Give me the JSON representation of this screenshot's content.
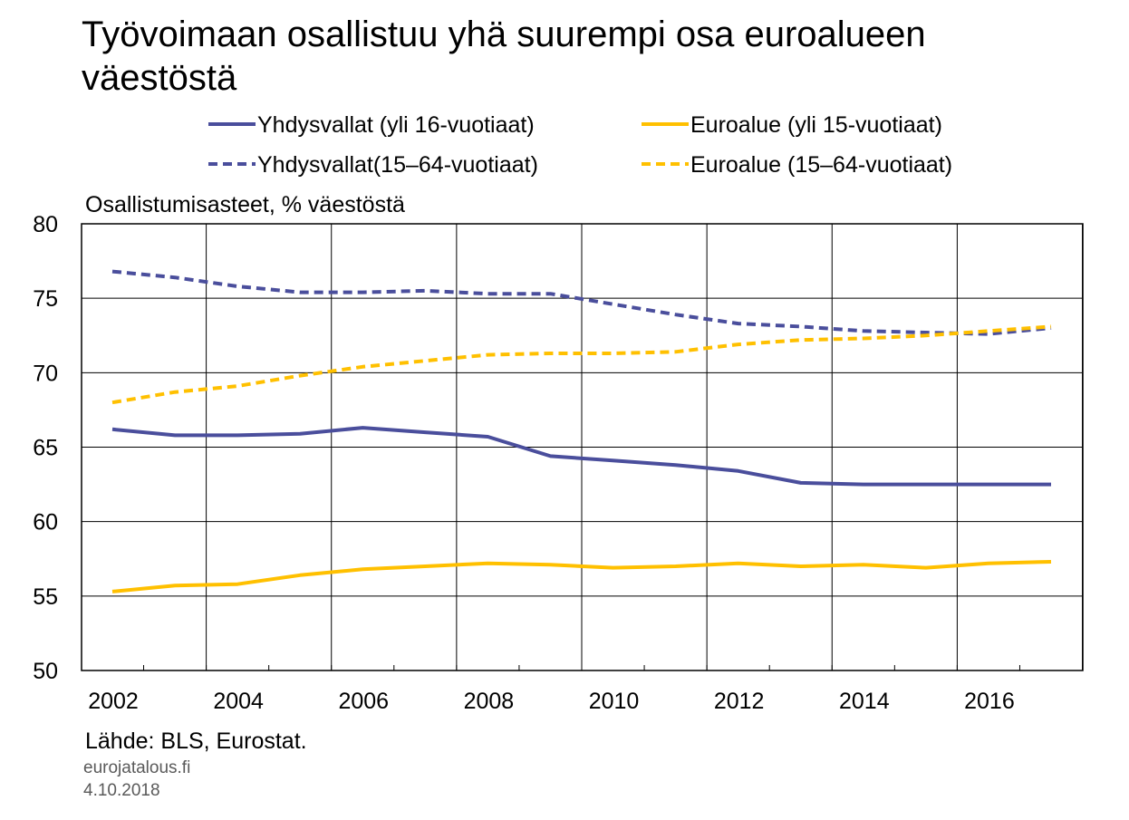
{
  "title": "Työvoimaan osallistuu yhä suurempi osa euroalueen väestöstä",
  "ylabel": "Osallistumisasteet, % väestöstä",
  "source": "Lähde: BLS, Eurostat.",
  "site": "eurojatalous.fi",
  "date": "4.10.2018",
  "colors": {
    "blue": "#4a4e9c",
    "gold": "#ffc000",
    "grid": "#000000"
  },
  "chart_data": {
    "type": "line",
    "x": [
      2002,
      2003,
      2004,
      2005,
      2006,
      2007,
      2008,
      2009,
      2010,
      2011,
      2012,
      2013,
      2014,
      2015,
      2016,
      2017
    ],
    "xticks": [
      "2002",
      "2004",
      "2006",
      "2008",
      "2010",
      "2012",
      "2014",
      "2016"
    ],
    "yticks": [
      "50",
      "55",
      "60",
      "65",
      "70",
      "75",
      "80"
    ],
    "ylim": [
      50,
      80
    ],
    "grid": true,
    "legend_position": "top",
    "series": [
      {
        "name": "Yhdysvallat (yli 16-vuotiaat)",
        "color": "#4a4e9c",
        "dash": false,
        "values": [
          66.2,
          65.8,
          65.8,
          65.9,
          66.3,
          66.0,
          65.7,
          64.4,
          64.1,
          63.8,
          63.4,
          62.6,
          62.5,
          62.5,
          62.5,
          62.5
        ]
      },
      {
        "name": "Euroalue (yli 15-vuotiaat)",
        "color": "#ffc000",
        "dash": false,
        "values": [
          55.3,
          55.7,
          55.8,
          56.4,
          56.8,
          57.0,
          57.2,
          57.1,
          56.9,
          57.0,
          57.2,
          57.0,
          57.1,
          56.9,
          57.2,
          57.3
        ]
      },
      {
        "name": "Yhdysvallat(15–64-vuotiaat)",
        "color": "#4a4e9c",
        "dash": true,
        "values": [
          76.8,
          76.4,
          75.8,
          75.4,
          75.4,
          75.5,
          75.3,
          75.3,
          74.6,
          73.9,
          73.3,
          73.1,
          72.8,
          72.7,
          72.6,
          73.0
        ]
      },
      {
        "name": "Euroalue (15–64-vuotiaat)",
        "color": "#ffc000",
        "dash": true,
        "values": [
          68.0,
          68.7,
          69.1,
          69.8,
          70.4,
          70.8,
          71.2,
          71.3,
          71.3,
          71.4,
          71.9,
          72.2,
          72.3,
          72.5,
          72.8,
          73.1
        ]
      }
    ]
  }
}
